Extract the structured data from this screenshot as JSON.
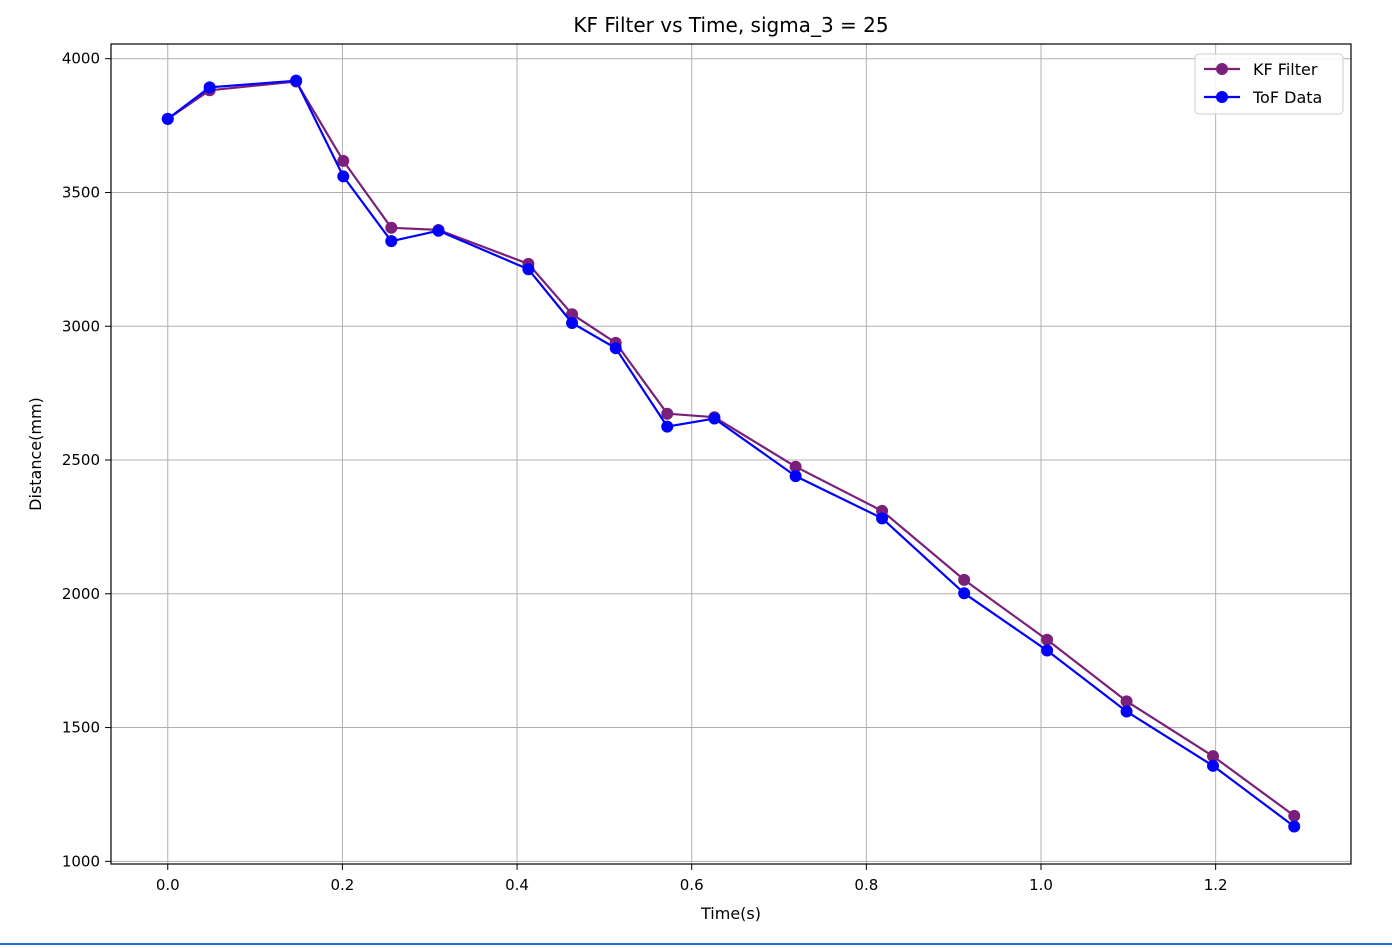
{
  "chart_data": {
    "type": "line",
    "title": "KF Filter vs Time, sigma_3 = 25",
    "xlabel": "Time(s)",
    "ylabel": "Distance(mm)",
    "xlim": [
      -0.065,
      1.355
    ],
    "ylim": [
      990,
      4055
    ],
    "xticks": [
      0.0,
      0.2,
      0.4,
      0.6,
      0.8,
      1.0,
      1.2
    ],
    "xtick_labels": [
      "0.0",
      "0.2",
      "0.4",
      "0.6",
      "0.8",
      "1.0",
      "1.2"
    ],
    "yticks": [
      1000,
      1500,
      2000,
      2500,
      3000,
      3500,
      4000
    ],
    "ytick_labels": [
      "1000",
      "1500",
      "2000",
      "2500",
      "3000",
      "3500",
      "4000"
    ],
    "grid": true,
    "legend_position": "top-right",
    "series": [
      {
        "name": "KF Filter",
        "color": "#7a1f7a",
        "marker": "circle",
        "x": [
          0.0,
          0.048,
          0.147,
          0.201,
          0.256,
          0.31,
          0.413,
          0.463,
          0.513,
          0.572,
          0.626,
          0.719,
          0.818,
          0.912,
          1.007,
          1.098,
          1.197,
          1.29
        ],
        "y": [
          3775,
          3882,
          3915,
          3618,
          3368,
          3360,
          3233,
          3045,
          2938,
          2673,
          2660,
          2475,
          2310,
          2052,
          1828,
          1598,
          1393,
          1170
        ]
      },
      {
        "name": "ToF Data",
        "color": "#0000ff",
        "marker": "circle",
        "x": [
          0.0,
          0.048,
          0.147,
          0.201,
          0.256,
          0.31,
          0.413,
          0.463,
          0.513,
          0.572,
          0.626,
          0.719,
          0.818,
          0.912,
          1.007,
          1.098,
          1.197,
          1.29
        ],
        "y": [
          3775,
          3893,
          3918,
          3560,
          3318,
          3357,
          3213,
          3012,
          2918,
          2625,
          2655,
          2440,
          2282,
          2002,
          1788,
          1560,
          1357,
          1130
        ]
      }
    ]
  }
}
